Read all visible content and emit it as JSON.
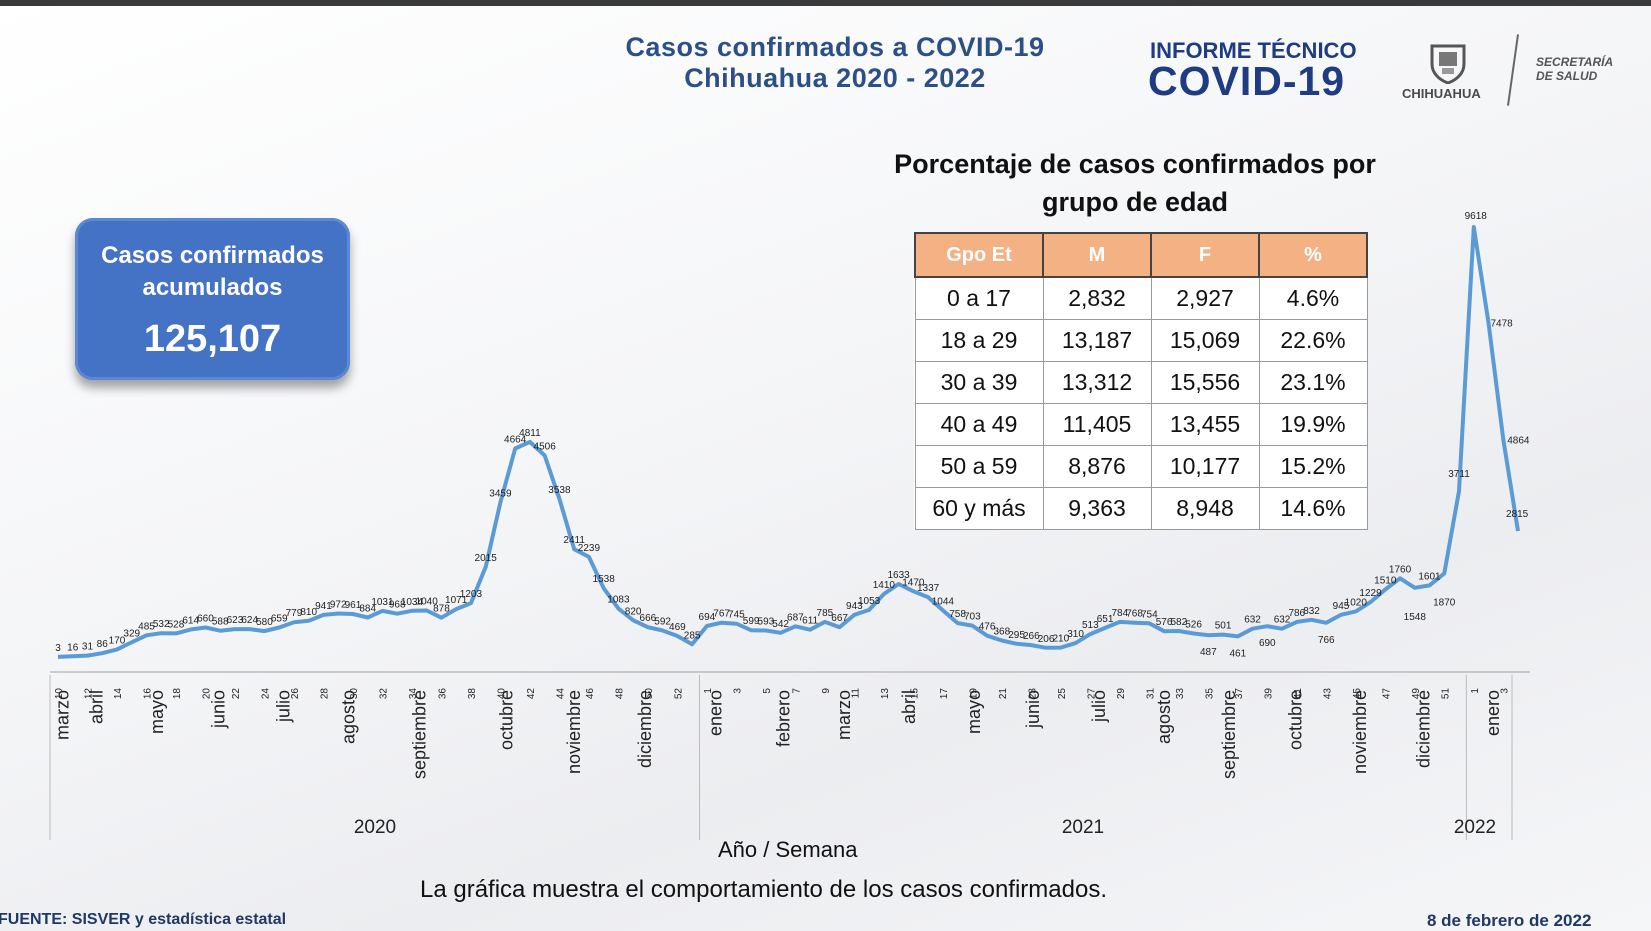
{
  "header": {
    "title_line1": "Casos confirmados a COVID-19",
    "title_line2": "Chihuahua 2020 - 2022",
    "informe_label": "INFORME TÉCNICO",
    "informe_big": "COVID-19",
    "logo_text": "CHIHUAHUA",
    "secretaria_line1": "SECRETARÍA",
    "secretaria_line2": "DE SALUD"
  },
  "accumulated": {
    "title_line1": "Casos confirmados",
    "title_line2": "acumulados",
    "value": "125,107"
  },
  "age_table": {
    "title_line1": "Porcentaje de casos confirmados por",
    "title_line2": "grupo de edad",
    "headers": [
      "Gpo Et",
      "M",
      "F",
      "%"
    ],
    "rows": [
      [
        "0 a 17",
        "2,832",
        "2,927",
        "4.6%"
      ],
      [
        "18 a 29",
        "13,187",
        "15,069",
        "22.6%"
      ],
      [
        "30 a 39",
        "13,312",
        "15,556",
        "23.1%"
      ],
      [
        "40 a 49",
        "11,405",
        "13,455",
        "19.9%"
      ],
      [
        "50 a 59",
        "8,876",
        "10,177",
        "15.2%"
      ],
      [
        "60 y más",
        "9,363",
        "8,948",
        "14.6%"
      ]
    ]
  },
  "chart_data": {
    "type": "line",
    "xlabel": "Año / Semana",
    "ylabel": "",
    "color": "#5b9bd5",
    "ylim": [
      0,
      10000
    ],
    "series": [
      {
        "values": [
          3,
          16,
          31,
          86,
          170,
          329,
          485,
          532,
          528,
          614,
          660,
          588,
          623,
          624,
          580,
          659,
          779,
          810,
          941,
          972,
          961,
          884,
          1031,
          968,
          1034,
          1040,
          878,
          1071,
          1203,
          2015,
          3459,
          4664,
          4811,
          4506,
          3538,
          2411,
          2239,
          1538,
          1083,
          820,
          666,
          592,
          469,
          285,
          694,
          767,
          745,
          599,
          593,
          542,
          687,
          611,
          785,
          667,
          943,
          1053,
          1410,
          1633,
          1470,
          1337,
          1044,
          758,
          703,
          476,
          368,
          295,
          266,
          206,
          210,
          310,
          513,
          651,
          784,
          768,
          754,
          576,
          582,
          526,
          487,
          501,
          461,
          632,
          690,
          632,
          786,
          832,
          766,
          945,
          1020,
          1229,
          1510,
          1760,
          1548,
          1601,
          1870,
          3711,
          9618,
          7478,
          4864,
          2815
        ]
      }
    ],
    "point_labels": [
      "3",
      "16",
      "31",
      "86",
      "170",
      "329",
      "485",
      "532",
      "528",
      "614",
      "660",
      "588",
      "623",
      "624",
      "580",
      "659",
      "779",
      "810",
      "941",
      "972",
      "961",
      "884",
      "1031",
      "968",
      "1034",
      "1040",
      "878",
      "1071",
      "1203",
      "2015",
      "3459",
      "4664",
      "4811",
      "4506",
      "3538",
      "2411",
      "2239",
      "1538",
      "1083",
      "820",
      "666",
      "592",
      "469",
      "285",
      "694",
      "767",
      "745",
      "599",
      "593",
      "542",
      "687",
      "611",
      "785",
      "667",
      "943",
      "1053",
      "1410",
      "1633",
      "1470",
      "1337",
      "1044",
      "758",
      "703",
      "476",
      "368",
      "295",
      "266",
      "206",
      "210",
      "310",
      "513",
      "651",
      "784",
      "768",
      "754",
      "576",
      "582",
      "526",
      "487",
      "501",
      "461",
      "632",
      "690",
      "632",
      "786",
      "832",
      "766",
      "945",
      "1020",
      "1229",
      "1510",
      "1760",
      "1548",
      "1601",
      "1870",
      "3711",
      "9618",
      "7478",
      "4864",
      "2815"
    ],
    "week_ticks": [
      "10",
      "12",
      "14",
      "16",
      "18",
      "20",
      "22",
      "24",
      "26",
      "28",
      "30",
      "32",
      "34",
      "36",
      "38",
      "40",
      "42",
      "44",
      "46",
      "48",
      "50",
      "52",
      "1",
      "3",
      "5",
      "7",
      "9",
      "11",
      "13",
      "15",
      "17",
      "19",
      "21",
      "23",
      "25",
      "27",
      "29",
      "31",
      "33",
      "35",
      "37",
      "39",
      "41",
      "43",
      "45",
      "47",
      "49",
      "51",
      "1",
      "3"
    ],
    "months_2020": [
      "marzo",
      "abril",
      "mayo",
      "junio",
      "julio",
      "agosto",
      "septiembre",
      "octubre",
      "noviembre",
      "diciembre"
    ],
    "months_2021": [
      "enero",
      "febrero",
      "marzo",
      "abril",
      "mayo",
      "junio",
      "julio",
      "agosto",
      "septiembre",
      "octubre",
      "noviembre",
      "diciembre"
    ],
    "months_2022": [
      "enero"
    ],
    "years": [
      "2020",
      "2021",
      "2022"
    ]
  },
  "footer": {
    "caption": "La gráfica muestra el comportamiento de los casos confirmados.",
    "source": "FUENTE: SISVER y estadística estatal",
    "date": "8 de febrero de 2022"
  }
}
